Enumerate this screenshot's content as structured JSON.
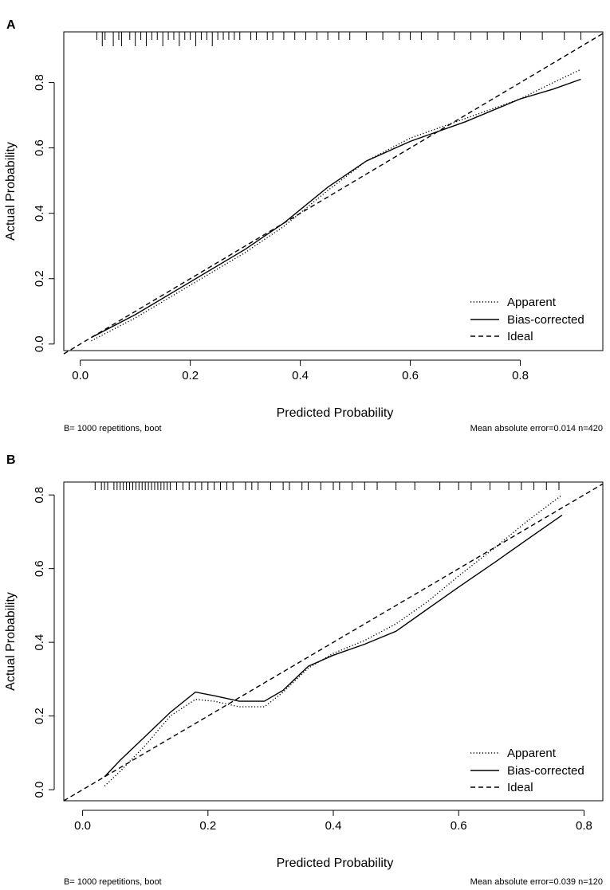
{
  "chart_data": [
    {
      "type": "line",
      "panel_label": "A",
      "xlabel": "Predicted Probability",
      "ylabel": "Actual Probability",
      "xlim": [
        -0.03,
        0.95
      ],
      "ylim": [
        -0.02,
        0.955
      ],
      "x_ticks": [
        0.0,
        0.2,
        0.4,
        0.6,
        0.8
      ],
      "x_tick_labels": [
        "0.0",
        "0.2",
        "0.4",
        "0.6",
        "0.8"
      ],
      "y_ticks": [
        0.0,
        0.2,
        0.4,
        0.6,
        0.8
      ],
      "y_tick_labels": [
        "0.0",
        "0.2",
        "0.4",
        "0.6",
        "0.8"
      ],
      "legend": {
        "position": "bottom-right",
        "entries": [
          "Apparent",
          "Bias-corrected",
          "Ideal"
        ]
      },
      "series": [
        {
          "name": "Apparent",
          "style": "dotted",
          "x": [
            0.02,
            0.1,
            0.2,
            0.3,
            0.37,
            0.45,
            0.52,
            0.6,
            0.7,
            0.8,
            0.86,
            0.91
          ],
          "y": [
            0.01,
            0.08,
            0.18,
            0.28,
            0.36,
            0.47,
            0.56,
            0.63,
            0.69,
            0.75,
            0.8,
            0.84
          ]
        },
        {
          "name": "Bias-corrected",
          "style": "solid",
          "x": [
            0.02,
            0.1,
            0.2,
            0.3,
            0.37,
            0.45,
            0.52,
            0.6,
            0.7,
            0.8,
            0.86,
            0.91
          ],
          "y": [
            0.02,
            0.09,
            0.19,
            0.29,
            0.37,
            0.48,
            0.56,
            0.62,
            0.68,
            0.75,
            0.78,
            0.81
          ]
        },
        {
          "name": "Ideal",
          "style": "dashed",
          "x": [
            -0.03,
            0.95
          ],
          "y": [
            -0.03,
            0.95
          ]
        }
      ],
      "rug": [
        0.03,
        0.04,
        0.045,
        0.06,
        0.07,
        0.075,
        0.09,
        0.1,
        0.11,
        0.12,
        0.13,
        0.14,
        0.15,
        0.16,
        0.17,
        0.18,
        0.19,
        0.2,
        0.21,
        0.22,
        0.23,
        0.24,
        0.25,
        0.26,
        0.27,
        0.28,
        0.29,
        0.31,
        0.32,
        0.34,
        0.35,
        0.37,
        0.39,
        0.41,
        0.43,
        0.45,
        0.47,
        0.49,
        0.52,
        0.55,
        0.58,
        0.6,
        0.62,
        0.65,
        0.68,
        0.71,
        0.74,
        0.77,
        0.8,
        0.84,
        0.88,
        0.91
      ],
      "rug_tall": [
        0.04,
        0.06,
        0.075,
        0.1,
        0.12,
        0.15,
        0.18,
        0.21,
        0.24
      ],
      "footnote_left": "B= 1000 repetitions, boot",
      "footnote_right": "Mean absolute error=0.014 n=420"
    },
    {
      "type": "line",
      "panel_label": "B",
      "xlabel": "Predicted Probability",
      "ylabel": "Actual Probability",
      "xlim": [
        -0.03,
        0.83
      ],
      "ylim": [
        -0.03,
        0.835
      ],
      "x_ticks": [
        0.0,
        0.2,
        0.4,
        0.6,
        0.8
      ],
      "x_tick_labels": [
        "0.0",
        "0.2",
        "0.4",
        "0.6",
        "0.8"
      ],
      "y_ticks": [
        0.0,
        0.2,
        0.4,
        0.6,
        0.8
      ],
      "y_tick_labels": [
        "0.0",
        "0.2",
        "0.4",
        "0.6",
        "0.8"
      ],
      "legend": {
        "position": "bottom-right",
        "entries": [
          "Apparent",
          "Bias-corrected",
          "Ideal"
        ]
      },
      "series": [
        {
          "name": "Apparent",
          "style": "dotted",
          "x": [
            0.035,
            0.06,
            0.1,
            0.14,
            0.18,
            0.21,
            0.25,
            0.29,
            0.32,
            0.36,
            0.4,
            0.45,
            0.5,
            0.55,
            0.6,
            0.66,
            0.71,
            0.765
          ],
          "y": [
            0.01,
            0.05,
            0.12,
            0.2,
            0.245,
            0.24,
            0.225,
            0.225,
            0.265,
            0.33,
            0.37,
            0.405,
            0.45,
            0.51,
            0.58,
            0.66,
            0.73,
            0.8
          ]
        },
        {
          "name": "Bias-corrected",
          "style": "solid",
          "x": [
            0.035,
            0.06,
            0.1,
            0.14,
            0.18,
            0.21,
            0.25,
            0.29,
            0.32,
            0.36,
            0.4,
            0.45,
            0.5,
            0.55,
            0.6,
            0.66,
            0.71,
            0.765
          ],
          "y": [
            0.035,
            0.08,
            0.145,
            0.21,
            0.265,
            0.255,
            0.24,
            0.24,
            0.27,
            0.335,
            0.365,
            0.395,
            0.43,
            0.49,
            0.55,
            0.62,
            0.68,
            0.745
          ]
        },
        {
          "name": "Ideal",
          "style": "dashed",
          "x": [
            -0.03,
            0.83
          ],
          "y": [
            -0.03,
            0.83
          ]
        }
      ],
      "rug": [
        0.02,
        0.03,
        0.035,
        0.04,
        0.05,
        0.055,
        0.06,
        0.065,
        0.07,
        0.075,
        0.08,
        0.085,
        0.09,
        0.095,
        0.1,
        0.105,
        0.11,
        0.115,
        0.12,
        0.125,
        0.13,
        0.135,
        0.14,
        0.15,
        0.16,
        0.17,
        0.18,
        0.19,
        0.2,
        0.21,
        0.22,
        0.23,
        0.24,
        0.26,
        0.27,
        0.28,
        0.3,
        0.32,
        0.33,
        0.35,
        0.36,
        0.38,
        0.4,
        0.41,
        0.43,
        0.45,
        0.47,
        0.5,
        0.53,
        0.57,
        0.6,
        0.62,
        0.65,
        0.68,
        0.7,
        0.72,
        0.74,
        0.76
      ],
      "rug_tall": [],
      "footnote_left": "B= 1000 repetitions, boot",
      "footnote_right": "Mean absolute error=0.039 n=120"
    }
  ]
}
